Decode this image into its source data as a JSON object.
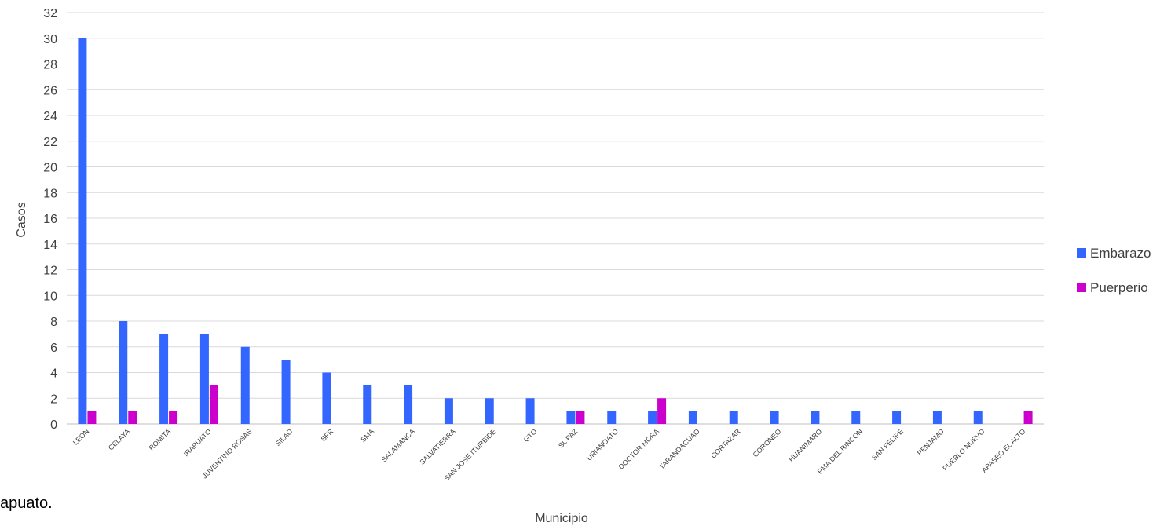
{
  "fragment_text": "apuato.",
  "chart_data": {
    "type": "bar",
    "xlabel": "Municipio",
    "ylabel": "Casos",
    "ylim": [
      0,
      32
    ],
    "ytick_step": 2,
    "grid": true,
    "legend_position": "right",
    "categories": [
      "LEON",
      "CELAYA",
      "ROMITA",
      "IRAPUATO",
      "JUVENTINO ROSAS",
      "SILAO",
      "SFR",
      "SMA",
      "SALAMANCA",
      "SALVATIERRA",
      "SAN JOSE ITURBIDE",
      "GTO",
      "SL PAZ",
      "URIANGATO",
      "DOCTOR MORA",
      "TARANDACUAO",
      "CORTAZAR",
      "CORONEO",
      "HUANIMARO",
      "PMA DEL RINCON",
      "SAN FELIPE",
      "PENJAMO",
      "PUEBLO NUEVO",
      "APASEO EL ALTO"
    ],
    "series": [
      {
        "name": "Embarazo",
        "color": "#3366ff",
        "values": [
          30,
          8,
          7,
          7,
          6,
          5,
          4,
          3,
          3,
          2,
          2,
          2,
          1,
          1,
          1,
          1,
          1,
          1,
          1,
          1,
          1,
          1,
          1,
          0
        ]
      },
      {
        "name": "Puerperio",
        "color": "#cc00cc",
        "values": [
          1,
          1,
          1,
          3,
          0,
          0,
          0,
          0,
          0,
          0,
          0,
          0,
          1,
          0,
          2,
          0,
          0,
          0,
          0,
          0,
          0,
          0,
          0,
          1
        ]
      }
    ]
  }
}
